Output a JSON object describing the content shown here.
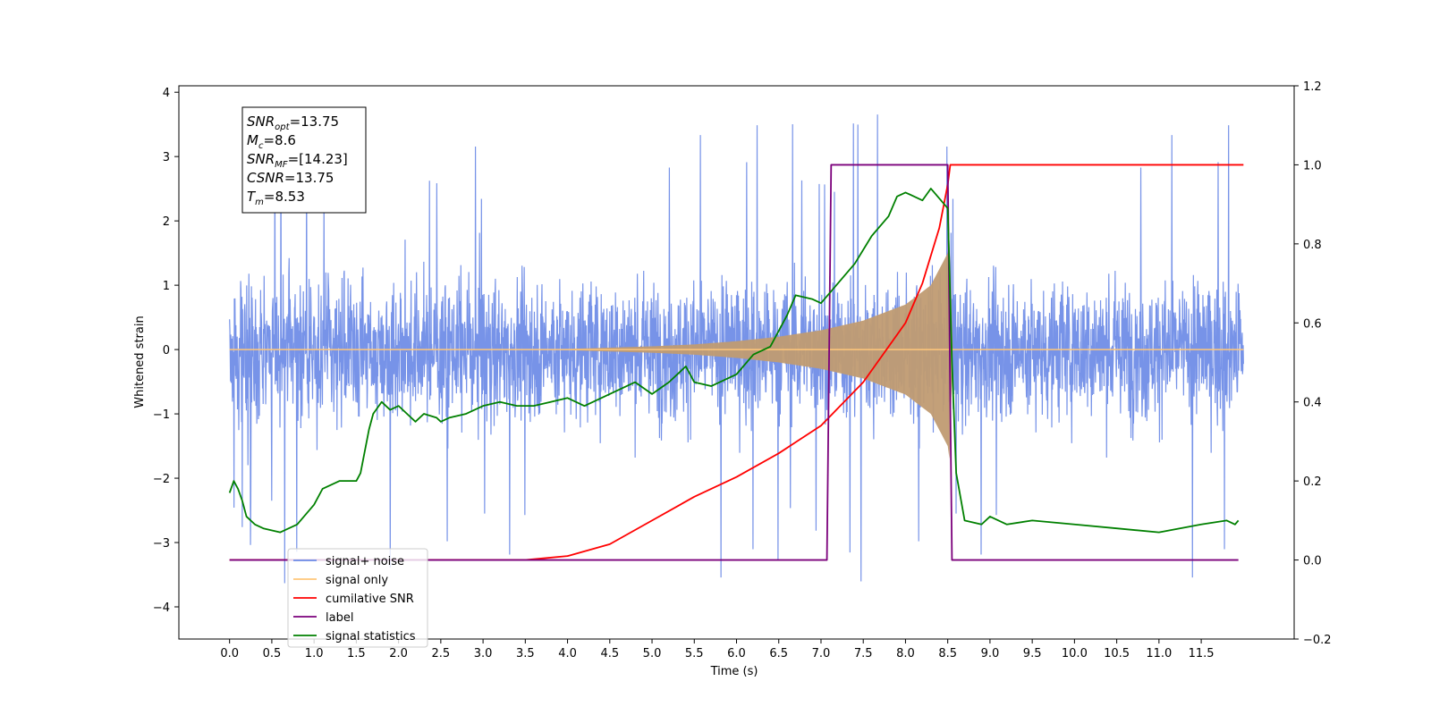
{
  "chart_data": {
    "type": "line",
    "xlabel": "Time (s)",
    "ylabel": "Whitened strain",
    "xlim": [
      -0.6,
      12.6
    ],
    "xticks": [
      "0.0",
      "0.5",
      "1.0",
      "1.5",
      "2.0",
      "2.5",
      "3.0",
      "3.5",
      "4.0",
      "4.5",
      "5.0",
      "5.5",
      "6.0",
      "6.5",
      "7.0",
      "7.5",
      "8.0",
      "8.5",
      "9.0",
      "9.5",
      "10.0",
      "10.5",
      "11.0",
      "11.5"
    ],
    "xtick_values": [
      0.0,
      0.5,
      1.0,
      1.5,
      2.0,
      2.5,
      3.0,
      3.5,
      4.0,
      4.5,
      5.0,
      5.5,
      6.0,
      6.5,
      7.0,
      7.5,
      8.0,
      8.5,
      9.0,
      9.5,
      10.0,
      10.5,
      11.0,
      11.5
    ],
    "ylim_left": [
      -4.5,
      4.1
    ],
    "yticks_left": [
      "4",
      "3",
      "2",
      "1",
      "0",
      "−1",
      "−2",
      "−3",
      "−4"
    ],
    "ytick_left_values": [
      4,
      3,
      2,
      1,
      0,
      -1,
      -2,
      -3,
      -4
    ],
    "ylim_right": [
      -0.2,
      1.2
    ],
    "yticks_right": [
      "1.2",
      "1.0",
      "0.8",
      "0.6",
      "0.4",
      "0.2",
      "0.0",
      "−0.2"
    ],
    "ytick_right_values": [
      1.2,
      1.0,
      0.8,
      0.6,
      0.4,
      0.2,
      0.0,
      -0.2
    ],
    "grid": false,
    "legend_position": "lower-left",
    "legend": [
      {
        "label": "signal+ noise",
        "color": "#6b8ae6"
      },
      {
        "label": "signal only",
        "color": "#ffc77a"
      },
      {
        "label": "cumilative SNR",
        "color": "#ff0000"
      },
      {
        "label": "label",
        "color": "#7b007b"
      },
      {
        "label": "signal statistics",
        "color": "#008000"
      }
    ],
    "annotation": [
      {
        "sym": "SNR",
        "sub": "opt",
        "rest": "=13.75"
      },
      {
        "sym": "M",
        "sub": "c",
        "rest": "=8.6"
      },
      {
        "sym": "SNR",
        "sub": "MF",
        "rest": "=[14.23]"
      },
      {
        "sym": "CSNR",
        "sub": "",
        "rest": "=13.75"
      },
      {
        "sym": "T",
        "sub": "m",
        "rest": "=8.53"
      }
    ],
    "series": [
      {
        "name": "signal+ noise",
        "axis": "left",
        "color": "#6b8ae6",
        "x_range": [
          0.0,
          12.0
        ],
        "band_abs": 1.3,
        "spike_abs_max": 3.75,
        "note_free": true
      },
      {
        "name": "signal only",
        "axis": "left",
        "color": "#ffc77a",
        "envelope": {
          "x": [
            0.0,
            3.5,
            4.0,
            4.5,
            5.0,
            5.5,
            6.0,
            6.5,
            7.0,
            7.5,
            8.0,
            8.3,
            8.5,
            8.53,
            8.55,
            12.0
          ],
          "y": [
            0.0,
            0.0,
            0.01,
            0.03,
            0.05,
            0.08,
            0.13,
            0.2,
            0.3,
            0.45,
            0.7,
            1.0,
            1.5,
            1.8,
            0.0,
            0.0
          ]
        }
      },
      {
        "name": "cumilative SNR",
        "axis": "right",
        "color": "#ff0000",
        "x": [
          0.0,
          3.0,
          3.5,
          4.0,
          4.5,
          5.0,
          5.5,
          6.0,
          6.5,
          7.0,
          7.5,
          8.0,
          8.2,
          8.4,
          8.5,
          8.53,
          8.55,
          12.0
        ],
        "y": [
          0.0,
          0.0,
          0.0,
          0.01,
          0.04,
          0.1,
          0.16,
          0.21,
          0.27,
          0.34,
          0.45,
          0.6,
          0.7,
          0.84,
          0.95,
          1.0,
          1.0,
          1.0
        ]
      },
      {
        "name": "label",
        "axis": "right",
        "color": "#7b007b",
        "x": [
          0.0,
          7.07,
          7.12,
          8.5,
          8.55,
          11.94
        ],
        "y": [
          0.0,
          0.0,
          1.0,
          1.0,
          0.0,
          0.0
        ]
      },
      {
        "name": "signal statistics",
        "axis": "right",
        "color": "#008000",
        "x": [
          0.0,
          0.05,
          0.1,
          0.15,
          0.2,
          0.3,
          0.4,
          0.6,
          0.7,
          0.8,
          1.0,
          1.1,
          1.3,
          1.5,
          1.55,
          1.65,
          1.7,
          1.8,
          1.9,
          2.0,
          2.1,
          2.2,
          2.3,
          2.45,
          2.5,
          2.6,
          2.8,
          3.0,
          3.2,
          3.4,
          3.6,
          3.8,
          4.0,
          4.2,
          4.4,
          4.6,
          4.8,
          5.0,
          5.2,
          5.4,
          5.5,
          5.7,
          6.0,
          6.2,
          6.4,
          6.6,
          6.7,
          6.9,
          7.0,
          7.2,
          7.4,
          7.6,
          7.8,
          7.9,
          8.0,
          8.2,
          8.3,
          8.5,
          8.55,
          8.6,
          8.7,
          8.9,
          9.0,
          9.2,
          9.5,
          10.0,
          10.5,
          11.0,
          11.5,
          11.8,
          11.9,
          11.94
        ],
        "y": [
          0.17,
          0.2,
          0.18,
          0.15,
          0.11,
          0.09,
          0.08,
          0.07,
          0.08,
          0.09,
          0.14,
          0.18,
          0.2,
          0.2,
          0.22,
          0.33,
          0.37,
          0.4,
          0.38,
          0.39,
          0.37,
          0.35,
          0.37,
          0.36,
          0.35,
          0.36,
          0.37,
          0.39,
          0.4,
          0.39,
          0.39,
          0.4,
          0.41,
          0.39,
          0.41,
          0.43,
          0.45,
          0.42,
          0.45,
          0.49,
          0.45,
          0.44,
          0.47,
          0.52,
          0.54,
          0.62,
          0.67,
          0.66,
          0.65,
          0.7,
          0.75,
          0.82,
          0.87,
          0.92,
          0.93,
          0.91,
          0.94,
          0.89,
          0.5,
          0.22,
          0.1,
          0.09,
          0.11,
          0.09,
          0.1,
          0.09,
          0.08,
          0.07,
          0.09,
          0.1,
          0.09,
          0.1
        ]
      }
    ]
  }
}
